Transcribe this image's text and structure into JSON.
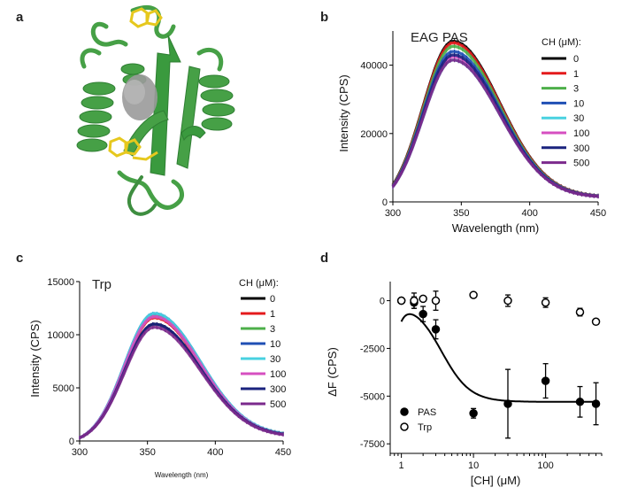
{
  "panels": {
    "a": "a",
    "b": "b",
    "c": "c",
    "d": "d"
  },
  "colors": {
    "protein": "#46a046",
    "protein_dark": "#2f7f33",
    "trp_side_chain": "#e6c81e",
    "surface": "#9a9a9a"
  },
  "chart_data": [
    {
      "panel": "b",
      "type": "line",
      "title": "EAG PAS",
      "xlabel": "Wavelength (nm)",
      "ylabel": "Intensity (CPS)",
      "xlim": [
        300,
        450
      ],
      "ylim": [
        0,
        50000
      ],
      "xticks": [
        300,
        350,
        400,
        450
      ],
      "yticks": [
        0,
        20000,
        40000
      ],
      "legend_title": "CH (μM):",
      "legend_position": "top-right",
      "peak_wavelength": 344,
      "series": [
        {
          "name": "0",
          "color": "#000000",
          "peak": 47000,
          "y_at_300": 5000,
          "y_at_450": 1800
        },
        {
          "name": "1",
          "color": "#e41a1c",
          "peak": 46500,
          "y_at_300": 4800,
          "y_at_450": 1750
        },
        {
          "name": "3",
          "color": "#4daf4a",
          "peak": 45500,
          "y_at_300": 4700,
          "y_at_450": 1700
        },
        {
          "name": "10",
          "color": "#1f4fb4",
          "peak": 44000,
          "y_at_300": 4600,
          "y_at_450": 1700
        },
        {
          "name": "30",
          "color": "#48d1e0",
          "peak": 41500,
          "y_at_300": 4400,
          "y_at_450": 1650
        },
        {
          "name": "100",
          "color": "#d64fc0",
          "peak": 42500,
          "y_at_300": 4500,
          "y_at_450": 1650
        },
        {
          "name": "300",
          "color": "#1a237e",
          "peak": 43000,
          "y_at_300": 4500,
          "y_at_450": 1650
        },
        {
          "name": "500",
          "color": "#7b2a8c",
          "peak": 41500,
          "y_at_300": 4400,
          "y_at_450": 1600
        }
      ]
    },
    {
      "panel": "c",
      "type": "line",
      "title": "Trp",
      "xlabel": "Wavelength (nm)",
      "ylabel": "Intensity (CPS)",
      "xlim": [
        300,
        450
      ],
      "ylim": [
        0,
        15000
      ],
      "xticks": [
        300,
        350,
        400,
        450
      ],
      "yticks": [
        0,
        5000,
        10000,
        15000
      ],
      "legend_title": "CH (μM):",
      "legend_position": "top-right",
      "peak_wavelength": 355,
      "series": [
        {
          "name": "0",
          "color": "#000000",
          "peak": 11000,
          "y_at_300": 300,
          "y_at_450": 700
        },
        {
          "name": "1",
          "color": "#e41a1c",
          "peak": 11600,
          "y_at_300": 300,
          "y_at_450": 700
        },
        {
          "name": "3",
          "color": "#4daf4a",
          "peak": 11800,
          "y_at_300": 300,
          "y_at_450": 700
        },
        {
          "name": "10",
          "color": "#1f4fb4",
          "peak": 12000,
          "y_at_300": 300,
          "y_at_450": 700
        },
        {
          "name": "30",
          "color": "#48d1e0",
          "peak": 12000,
          "y_at_300": 300,
          "y_at_450": 700
        },
        {
          "name": "100",
          "color": "#d64fc0",
          "peak": 11700,
          "y_at_300": 300,
          "y_at_450": 650
        },
        {
          "name": "300",
          "color": "#1a237e",
          "peak": 11000,
          "y_at_300": 300,
          "y_at_450": 650
        },
        {
          "name": "500",
          "color": "#7b2a8c",
          "peak": 10700,
          "y_at_300": 300,
          "y_at_450": 600
        }
      ]
    },
    {
      "panel": "d",
      "type": "scatter",
      "xlabel": "[CH] (μM)",
      "ylabel": "ΔF (CPS)",
      "xscale": "log",
      "xlim": [
        0.7,
        600
      ],
      "ylim": [
        -8000,
        1000
      ],
      "xticks": [
        1,
        10,
        100
      ],
      "yticks": [
        0,
        -2500,
        -5000,
        -7500
      ],
      "legend_position": "bottom-left",
      "series": [
        {
          "name": "PAS",
          "marker": "filled-circle",
          "x": [
            1,
            1.5,
            2,
            3,
            10,
            30,
            100,
            300,
            500
          ],
          "y": [
            0,
            -100,
            -700,
            -1500,
            -5900,
            -5400,
            -4200,
            -5300,
            -5400
          ],
          "err": [
            0,
            300,
            400,
            500,
            250,
            1800,
            900,
            800,
            1100
          ]
        },
        {
          "name": "Trp",
          "marker": "open-circle",
          "x": [
            1,
            1.5,
            2,
            3,
            10,
            30,
            100,
            300,
            500
          ],
          "y": [
            0,
            0,
            100,
            0,
            300,
            0,
            -100,
            -600,
            -1100
          ],
          "err": [
            0,
            400,
            0,
            500,
            0,
            300,
            250,
            200,
            0
          ]
        }
      ],
      "fit": {
        "type": "hill",
        "top": 0,
        "bottom": -5300,
        "ec50": 3.6,
        "hill": 2.2,
        "x_start": 1,
        "x_end": 500
      }
    }
  ]
}
